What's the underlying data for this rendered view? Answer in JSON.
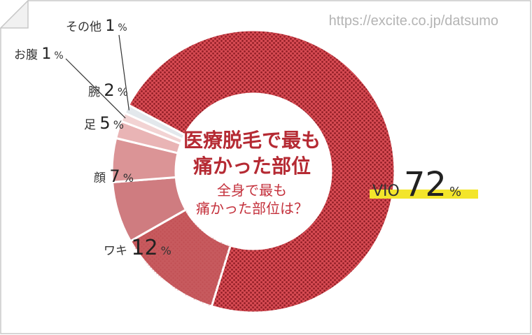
{
  "source_url": "https://excite.co.jp/datsumo",
  "center": {
    "title_line1": "医療脱毛で最も",
    "title_line2": "痛かった部位",
    "sub_line1": "全身で最も",
    "sub_line2": "痛かった部位は？"
  },
  "chart_data": {
    "type": "pie",
    "donut": true,
    "title": "医療脱毛で最も痛かった部位",
    "subtitle": "全身で最も痛かった部位は？",
    "unit": "%",
    "categories": [
      "VIO",
      "ワキ",
      "顔",
      "足",
      "腕",
      "お腹",
      "その他"
    ],
    "values": [
      72,
      12,
      7,
      5,
      2,
      1,
      1
    ],
    "colors": [
      "#c4313c",
      "#c75a5e",
      "#cf7c80",
      "#db9496",
      "#e9b4b5",
      "#f2d3d3",
      "#e3e8ec"
    ],
    "highlight": "VIO"
  }
}
